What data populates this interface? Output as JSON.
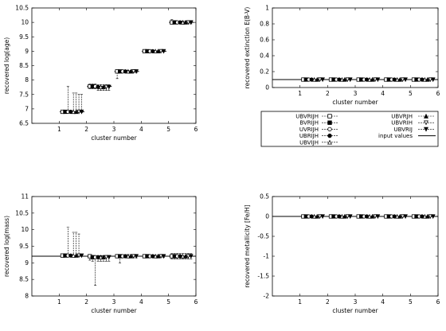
{
  "chart_data": [
    {
      "id": "age",
      "type": "scatter",
      "xlabel": "cluster number",
      "ylabel": "recovered log(age)",
      "xlim": [
        0,
        6
      ],
      "ylim": [
        6.5,
        10.5
      ],
      "xticks": [
        "1",
        "2",
        "3",
        "4",
        "5",
        "6"
      ],
      "yticks": [
        "6.5",
        "7",
        "7.5",
        "8",
        "8.5",
        "9",
        "9.5",
        "10",
        "10.5"
      ],
      "input_values": [
        6.9,
        7.78,
        8.3,
        9.0,
        10.0
      ],
      "series": [
        {
          "name": "UBVRIJH",
          "marker": "square-open",
          "x": [
            1.12,
            2.12,
            3.12,
            4.12,
            5.12
          ],
          "y": [
            6.9,
            7.78,
            8.3,
            9.0,
            10.0
          ],
          "err": [
            [
              0.02,
              0.02
            ],
            [
              0.08,
              0.08
            ],
            [
              0.25,
              0.04
            ],
            [
              0.02,
              0.02
            ],
            [
              0.05,
              0.1
            ]
          ]
        },
        {
          "name": "BVRIJH",
          "marker": "square-filled",
          "x": [
            1.22,
            2.22,
            3.22,
            4.22,
            5.22
          ],
          "y": [
            6.9,
            7.78,
            8.3,
            9.0,
            10.0
          ],
          "err": [
            [
              0.02,
              0.02
            ],
            [
              0.08,
              0.08
            ],
            [
              0.04,
              0.04
            ],
            [
              0.02,
              0.02
            ],
            [
              0.05,
              0.05
            ]
          ]
        },
        {
          "name": "UVRIJH",
          "marker": "circle-open",
          "x": [
            1.32,
            2.32,
            3.32,
            4.32,
            5.32
          ],
          "y": [
            6.9,
            7.78,
            8.3,
            9.0,
            10.0
          ],
          "err": [
            [
              0.02,
              0.88
            ],
            [
              0.08,
              0.08
            ],
            [
              0.04,
              0.04
            ],
            [
              0.02,
              0.02
            ],
            [
              0.05,
              0.05
            ]
          ]
        },
        {
          "name": "UBRIJH",
          "marker": "circle-filled",
          "x": [
            1.42,
            2.42,
            3.42,
            4.42,
            5.42
          ],
          "y": [
            6.9,
            7.76,
            8.3,
            9.0,
            10.0
          ],
          "err": [
            [
              0.02,
              0.02
            ],
            [
              0.12,
              0.08
            ],
            [
              0.04,
              0.04
            ],
            [
              0.02,
              0.02
            ],
            [
              0.05,
              0.05
            ]
          ]
        },
        {
          "name": "UBVIJH",
          "marker": "triangle-open",
          "x": [
            1.52,
            2.52,
            3.52,
            4.52,
            5.52
          ],
          "y": [
            6.9,
            7.76,
            8.3,
            9.0,
            10.0
          ],
          "err": [
            [
              0.02,
              0.65
            ],
            [
              0.12,
              0.08
            ],
            [
              0.04,
              0.04
            ],
            [
              0.02,
              0.02
            ],
            [
              0.05,
              0.05
            ]
          ]
        },
        {
          "name": "UBVRJH",
          "marker": "triangle-filled",
          "x": [
            1.62,
            2.62,
            3.62,
            4.62,
            5.62
          ],
          "y": [
            6.9,
            7.76,
            8.3,
            9.0,
            10.0
          ],
          "err": [
            [
              0.02,
              0.65
            ],
            [
              0.12,
              0.08
            ],
            [
              0.04,
              0.04
            ],
            [
              0.02,
              0.02
            ],
            [
              0.05,
              0.05
            ]
          ]
        },
        {
          "name": "UBVRIH",
          "marker": "triangle-down-open",
          "x": [
            1.72,
            2.72,
            3.72,
            4.72,
            5.72
          ],
          "y": [
            6.9,
            7.76,
            8.3,
            9.0,
            10.0
          ],
          "err": [
            [
              0.02,
              0.6
            ],
            [
              0.12,
              0.08
            ],
            [
              0.04,
              0.04
            ],
            [
              0.02,
              0.02
            ],
            [
              0.05,
              0.05
            ]
          ]
        },
        {
          "name": "UBVRIJ",
          "marker": "triangle-down-filled",
          "x": [
            1.82,
            2.82,
            3.82,
            4.82,
            5.82
          ],
          "y": [
            6.9,
            7.76,
            8.3,
            9.0,
            10.0
          ],
          "err": [
            [
              0.02,
              0.6
            ],
            [
              0.12,
              0.08
            ],
            [
              0.04,
              0.04
            ],
            [
              0.02,
              0.02
            ],
            [
              0.05,
              0.05
            ]
          ]
        }
      ]
    },
    {
      "id": "extinction",
      "type": "scatter",
      "xlabel": "cluster number",
      "ylabel": "recovered extinction E(B-V)",
      "xlim": [
        0,
        6
      ],
      "ylim": [
        0,
        1
      ],
      "xticks": [
        "1",
        "2",
        "3",
        "4",
        "5",
        "6"
      ],
      "yticks": [
        "0",
        "0.2",
        "0.4",
        "0.6",
        "0.8",
        "1"
      ],
      "input_values": [
        0.1,
        0.1,
        0.1,
        0.1,
        0.1
      ],
      "series": [
        {
          "name": "UBVRIJH",
          "marker": "square-open",
          "x": [
            1.12,
            2.12,
            3.12,
            4.12,
            5.12
          ],
          "y": [
            0.1,
            0.1,
            0.1,
            0.1,
            0.1
          ]
        },
        {
          "name": "BVRIJH",
          "marker": "square-filled",
          "x": [
            1.22,
            2.22,
            3.22,
            4.22,
            5.22
          ],
          "y": [
            0.1,
            0.1,
            0.1,
            0.1,
            0.1
          ]
        },
        {
          "name": "UVRIJH",
          "marker": "circle-open",
          "x": [
            1.32,
            2.32,
            3.32,
            4.32,
            5.32
          ],
          "y": [
            0.1,
            0.1,
            0.1,
            0.1,
            0.1
          ]
        },
        {
          "name": "UBRIJH",
          "marker": "circle-filled",
          "x": [
            1.42,
            2.42,
            3.42,
            4.42,
            5.42
          ],
          "y": [
            0.1,
            0.1,
            0.1,
            0.1,
            0.1
          ]
        },
        {
          "name": "UBVIJH",
          "marker": "triangle-open",
          "x": [
            1.52,
            2.52,
            3.52,
            4.52,
            5.52
          ],
          "y": [
            0.1,
            0.1,
            0.1,
            0.1,
            0.1
          ]
        },
        {
          "name": "UBVRJH",
          "marker": "triangle-filled",
          "x": [
            1.62,
            2.62,
            3.62,
            4.62,
            5.62
          ],
          "y": [
            0.1,
            0.1,
            0.1,
            0.1,
            0.1
          ]
        },
        {
          "name": "UBVRIH",
          "marker": "triangle-down-open",
          "x": [
            1.72,
            2.72,
            3.72,
            4.72,
            5.72
          ],
          "y": [
            0.1,
            0.1,
            0.1,
            0.1,
            0.1
          ]
        },
        {
          "name": "UBVRIJ",
          "marker": "triangle-down-filled",
          "x": [
            1.82,
            2.82,
            3.82,
            4.82,
            5.82
          ],
          "y": [
            0.1,
            0.1,
            0.1,
            0.1,
            0.1
          ]
        }
      ]
    },
    {
      "id": "mass",
      "type": "scatter",
      "xlabel": "cluster number",
      "ylabel": "recovered log(mass)",
      "xlim": [
        0,
        6
      ],
      "ylim": [
        8,
        11
      ],
      "xticks": [
        "1",
        "2",
        "3",
        "4",
        "5",
        "6"
      ],
      "yticks": [
        "8",
        "8.5",
        "9",
        "9.5",
        "10",
        "10.5",
        "11"
      ],
      "input_values": [
        9.2,
        9.2,
        9.2,
        9.2,
        9.2
      ],
      "series": [
        {
          "name": "UBVRIJH",
          "marker": "square-open",
          "x": [
            1.12,
            2.12,
            3.12,
            4.12,
            5.12
          ],
          "y": [
            9.22,
            9.2,
            9.2,
            9.2,
            9.2
          ],
          "err": [
            [
              0.02,
              0.02
            ],
            [
              0.12,
              0.05
            ],
            [
              0.05,
              0.05
            ],
            [
              0.03,
              0.03
            ],
            [
              0.08,
              0.08
            ]
          ]
        },
        {
          "name": "BVRIJH",
          "marker": "square-filled",
          "x": [
            1.22,
            2.22,
            3.22,
            4.22,
            5.22
          ],
          "y": [
            9.22,
            9.17,
            9.2,
            9.2,
            9.2
          ],
          "err": [
            [
              0.02,
              0.02
            ],
            [
              0.12,
              0.05
            ],
            [
              0.2,
              0.05
            ],
            [
              0.03,
              0.03
            ],
            [
              0.08,
              0.08
            ]
          ]
        },
        {
          "name": "UVRIJH",
          "marker": "circle-open",
          "x": [
            1.32,
            2.32,
            3.32,
            4.32,
            5.32
          ],
          "y": [
            9.22,
            9.17,
            9.2,
            9.2,
            9.2
          ],
          "err": [
            [
              0.02,
              0.85
            ],
            [
              0.85,
              0.05
            ],
            [
              0.05,
              0.05
            ],
            [
              0.03,
              0.03
            ],
            [
              0.08,
              0.08
            ]
          ]
        },
        {
          "name": "UBRIJH",
          "marker": "circle-filled",
          "x": [
            1.42,
            2.42,
            3.42,
            4.42,
            5.42
          ],
          "y": [
            9.22,
            9.17,
            9.2,
            9.2,
            9.2
          ],
          "err": [
            [
              0.02,
              0.02
            ],
            [
              0.12,
              0.05
            ],
            [
              0.05,
              0.05
            ],
            [
              0.03,
              0.03
            ],
            [
              0.08,
              0.08
            ]
          ]
        },
        {
          "name": "UBVIJH",
          "marker": "triangle-open",
          "x": [
            1.52,
            2.52,
            3.52,
            4.52,
            5.52
          ],
          "y": [
            9.22,
            9.17,
            9.2,
            9.2,
            9.2
          ],
          "err": [
            [
              0.02,
              0.7
            ],
            [
              0.12,
              0.05
            ],
            [
              0.05,
              0.05
            ],
            [
              0.03,
              0.03
            ],
            [
              0.08,
              0.08
            ]
          ]
        },
        {
          "name": "UBVRJH",
          "marker": "triangle-filled",
          "x": [
            1.62,
            2.62,
            3.62,
            4.62,
            5.62
          ],
          "y": [
            9.22,
            9.17,
            9.2,
            9.2,
            9.2
          ],
          "err": [
            [
              0.02,
              0.7
            ],
            [
              0.12,
              0.05
            ],
            [
              0.05,
              0.05
            ],
            [
              0.03,
              0.03
            ],
            [
              0.08,
              0.08
            ]
          ]
        },
        {
          "name": "UBVRIH",
          "marker": "triangle-down-open",
          "x": [
            1.72,
            2.72,
            3.72,
            4.72,
            5.72
          ],
          "y": [
            9.22,
            9.17,
            9.2,
            9.2,
            9.2
          ],
          "err": [
            [
              0.02,
              0.65
            ],
            [
              0.12,
              0.05
            ],
            [
              0.05,
              0.05
            ],
            [
              0.03,
              0.03
            ],
            [
              0.08,
              0.08
            ]
          ]
        },
        {
          "name": "UBVRIJ",
          "marker": "triangle-down-filled",
          "x": [
            1.82,
            2.82,
            3.82,
            4.82,
            5.82
          ],
          "y": [
            9.22,
            9.17,
            9.2,
            9.2,
            9.2
          ],
          "err": [
            [
              0.02,
              0.02
            ],
            [
              0.12,
              0.05
            ],
            [
              0.05,
              0.05
            ],
            [
              0.03,
              0.03
            ],
            [
              0.08,
              0.08
            ]
          ]
        }
      ]
    },
    {
      "id": "metallicity",
      "type": "scatter",
      "xlabel": "cluster number",
      "ylabel": "recovered metallicity [Fe/H]",
      "xlim": [
        0,
        6
      ],
      "ylim": [
        -2,
        0.5
      ],
      "xticks": [
        "1",
        "2",
        "3",
        "4",
        "5",
        "6"
      ],
      "yticks": [
        "-2",
        "-1.5",
        "-1",
        "-0.5",
        "0",
        "0.5"
      ],
      "input_values": [
        0,
        0,
        0,
        0,
        0
      ],
      "series": [
        {
          "name": "UBVRIJH",
          "marker": "square-open",
          "x": [
            1.12,
            2.12,
            3.12,
            4.12,
            5.12
          ],
          "y": [
            0,
            0,
            0,
            0,
            0
          ]
        },
        {
          "name": "BVRIJH",
          "marker": "square-filled",
          "x": [
            1.22,
            2.22,
            3.22,
            4.22,
            5.22
          ],
          "y": [
            0,
            0,
            0,
            0,
            0
          ]
        },
        {
          "name": "UVRIJH",
          "marker": "circle-open",
          "x": [
            1.32,
            2.32,
            3.32,
            4.32,
            5.32
          ],
          "y": [
            0,
            0,
            0,
            0,
            0
          ]
        },
        {
          "name": "UBRIJH",
          "marker": "circle-filled",
          "x": [
            1.42,
            2.42,
            3.42,
            4.42,
            5.42
          ],
          "y": [
            0,
            0,
            0,
            0,
            0
          ]
        },
        {
          "name": "UBVIJH",
          "marker": "triangle-open",
          "x": [
            1.52,
            2.52,
            3.52,
            4.52,
            5.52
          ],
          "y": [
            0,
            0,
            0,
            0,
            0
          ]
        },
        {
          "name": "UBVRJH",
          "marker": "triangle-filled",
          "x": [
            1.62,
            2.62,
            3.62,
            4.62,
            5.62
          ],
          "y": [
            0,
            0,
            0,
            0,
            0
          ]
        },
        {
          "name": "UBVRIH",
          "marker": "triangle-down-open",
          "x": [
            1.72,
            2.72,
            3.72,
            4.72,
            5.72
          ],
          "y": [
            0,
            0,
            0,
            0,
            0
          ]
        },
        {
          "name": "UBVRIJ",
          "marker": "triangle-down-filled",
          "x": [
            1.82,
            2.82,
            3.82,
            4.82,
            5.82
          ],
          "y": [
            0,
            0,
            0,
            0,
            0
          ]
        }
      ]
    }
  ],
  "legend": {
    "left": [
      {
        "label": "UBVRIJH",
        "marker": "square-open"
      },
      {
        "label": "BVRIJH",
        "marker": "square-filled"
      },
      {
        "label": "UVRIJH",
        "marker": "circle-open"
      },
      {
        "label": "UBRIJH",
        "marker": "circle-filled"
      },
      {
        "label": "UBVIJH",
        "marker": "triangle-open"
      }
    ],
    "right": [
      {
        "label": "UBVRJH",
        "marker": "triangle-filled"
      },
      {
        "label": "UBVRIH",
        "marker": "triangle-down-open"
      },
      {
        "label": "UBVRIJ",
        "marker": "triangle-down-filled"
      },
      {
        "label": "input values",
        "marker": "line"
      }
    ]
  }
}
